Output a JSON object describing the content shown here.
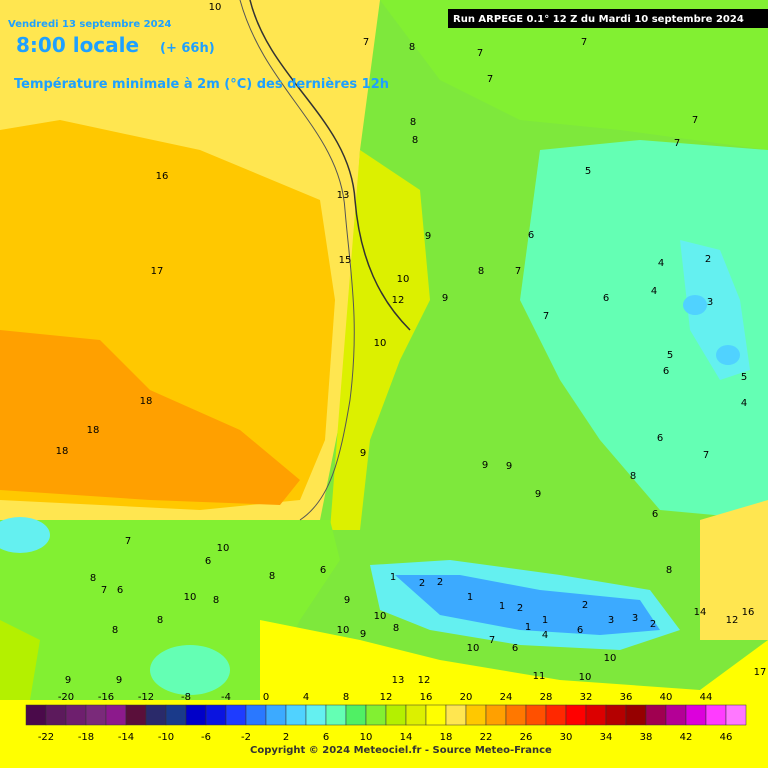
{
  "header": {
    "date": "Vendredi 13 septembre 2024",
    "time": "8:00 locale",
    "lead": "(+ 66h)",
    "parameter": "Température minimale à 2m (°C) des dernières 12h",
    "run": "Run ARPEGE 0.1° 12 Z du Mardi 10 septembre 2024"
  },
  "map_labels": [
    10,
    16,
    17,
    18,
    18,
    18,
    13,
    15,
    10,
    12,
    10,
    7,
    8,
    7,
    7,
    7,
    8,
    8,
    9,
    8,
    7,
    6,
    9,
    7,
    6,
    5,
    7,
    7,
    4,
    4,
    2,
    3,
    5,
    6,
    5,
    4,
    6,
    7,
    8,
    6,
    9,
    9,
    9,
    9,
    7,
    10,
    6,
    8,
    7,
    6,
    10,
    8,
    8,
    8,
    8,
    6,
    9,
    10,
    9,
    10,
    8,
    10,
    7,
    6,
    4,
    6,
    11,
    8,
    13,
    12,
    9,
    9,
    10,
    10,
    14,
    16,
    12,
    17,
    1,
    2,
    2,
    1,
    1,
    2,
    1,
    1,
    2,
    3,
    3,
    2
  ],
  "colorbar": {
    "range": [
      -24,
      48
    ],
    "colors": [
      "#4a0a4a",
      "#5c1a5c",
      "#6e1f6e",
      "#7a2a7a",
      "#8c1a8c",
      "#5a0f3a",
      "#2a2a6a",
      "#1a3a8a",
      "#0000c8",
      "#0a14e0",
      "#1e3cff",
      "#2a78ff",
      "#3caaff",
      "#50d2ff",
      "#64f0f0",
      "#64ffb4",
      "#50f064",
      "#82f032",
      "#b4f000",
      "#dcf000",
      "#ffff00",
      "#ffe650",
      "#ffc800",
      "#ffa000",
      "#ff7800",
      "#ff5000",
      "#ff2800",
      "#ff0000",
      "#dc0000",
      "#b40000",
      "#960000",
      "#a00050",
      "#b40096",
      "#dc00dc",
      "#ff3cff",
      "#ff78ff"
    ],
    "top_ticks": [
      -20,
      -16,
      -12,
      -8,
      -4,
      0,
      4,
      8,
      12,
      16,
      20,
      24,
      28,
      32,
      36,
      40,
      44
    ],
    "bottom_ticks": [
      -22,
      -18,
      -14,
      -10,
      -6,
      -2,
      2,
      6,
      10,
      14,
      18,
      22,
      26,
      30,
      34,
      38,
      42,
      46
    ]
  },
  "copyright": "Copyright © 2024 Meteociel.fr - Source Meteo-France"
}
